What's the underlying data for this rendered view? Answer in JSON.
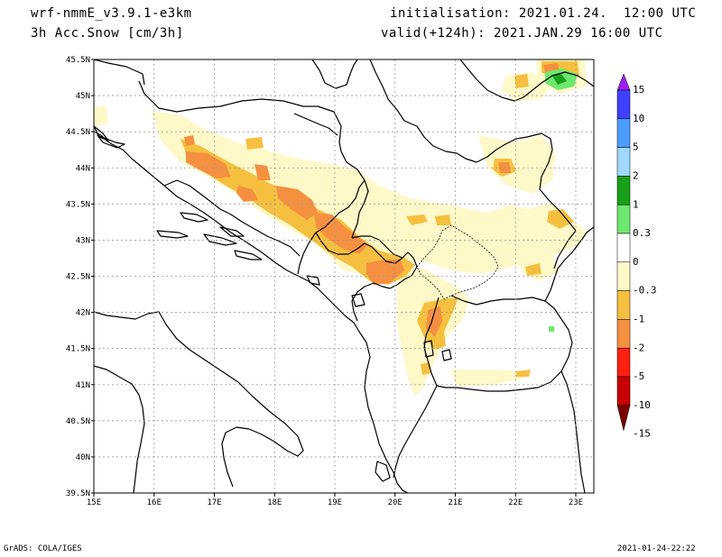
{
  "header": {
    "model": "wrf-nmmE_v3.9.1-e3km",
    "field": "3h Acc.Snow [cm/3h]",
    "init": "initialisation: 2021.01.24.  12:00 UTC",
    "valid": "valid(+124h): 2021.JAN.29 16:00 UTC"
  },
  "footer": {
    "credit": "GrADS: COLA/IGES",
    "timestamp": "2021-01-24-22:22"
  },
  "map": {
    "lon_ticks": [
      "15E",
      "16E",
      "17E",
      "18E",
      "19E",
      "20E",
      "21E",
      "22E",
      "23E"
    ],
    "lat_ticks": [
      "45.5N",
      "45N",
      "44.5N",
      "44N",
      "43.5N",
      "43N",
      "42.5N",
      "42N",
      "41.5N",
      "41N",
      "40.5N",
      "40N",
      "39.5N"
    ],
    "lon_range": [
      15,
      23.3
    ],
    "lat_range": [
      39.5,
      45.5
    ]
  },
  "colorbar": {
    "labels": [
      "15",
      "10",
      "5",
      "2",
      "1",
      "0.3",
      "0",
      "-0.3",
      "-1",
      "-2",
      "-5",
      "-10",
      "-15"
    ],
    "colors": [
      "#a020f0",
      "#4040ff",
      "#4c9cff",
      "#a0d8ff",
      "#18a018",
      "#6ee86e",
      "#ffffff",
      "#fff8c8",
      "#f5c040",
      "#f59040",
      "#ff2010",
      "#c80000",
      "#7a0000"
    ]
  },
  "colors": {
    "light": "#fff8c8",
    "yellow": "#f5c040",
    "orange": "#f59040",
    "lightgreen": "#6ee86e",
    "green": "#18a018"
  }
}
